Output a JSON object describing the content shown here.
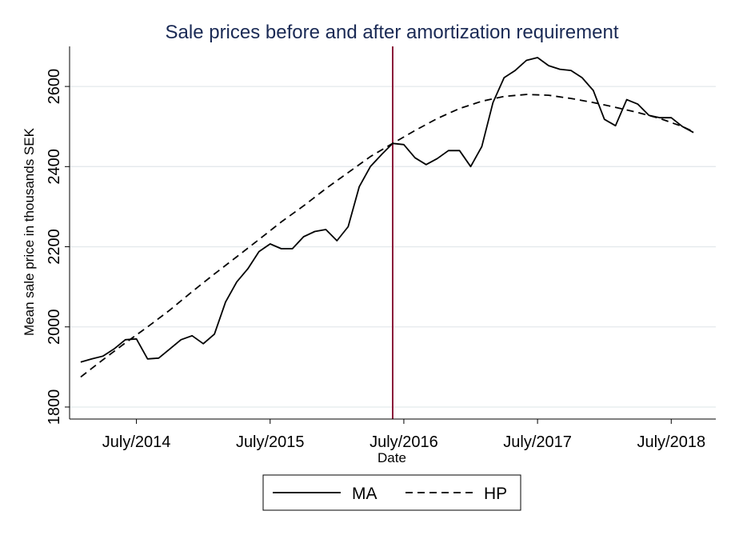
{
  "chart_data": {
    "type": "line",
    "title": "Sale prices before and after amortization requirement",
    "xlabel": "Date",
    "ylabel": "Mean sale price in  thousands SEK",
    "x_unit": "month",
    "xlim": [
      "2014-01",
      "2018-11"
    ],
    "ylim": [
      1770,
      2700
    ],
    "y_ticks": [
      1800,
      2000,
      2200,
      2400,
      2600
    ],
    "x_ticks": [
      {
        "date": "2014-07",
        "label": "July/2014"
      },
      {
        "date": "2015-07",
        "label": "July/2015"
      },
      {
        "date": "2016-07",
        "label": "July/2016"
      },
      {
        "date": "2017-07",
        "label": "July/2017"
      },
      {
        "date": "2018-07",
        "label": "July/2018"
      }
    ],
    "grid": true,
    "legend_position": "bottom",
    "vertical_line": {
      "date": "2016-06",
      "color": "#8b1a3a"
    },
    "series": [
      {
        "name": "MA",
        "style": "solid",
        "color": "#000000",
        "x": [
          "2014-02",
          "2014-03",
          "2014-04",
          "2014-05",
          "2014-06",
          "2014-07",
          "2014-08",
          "2014-09",
          "2014-10",
          "2014-11",
          "2014-12",
          "2015-01",
          "2015-02",
          "2015-03",
          "2015-04",
          "2015-05",
          "2015-06",
          "2015-07",
          "2015-08",
          "2015-09",
          "2015-10",
          "2015-11",
          "2015-12",
          "2016-01",
          "2016-02",
          "2016-03",
          "2016-04",
          "2016-05",
          "2016-06",
          "2016-07",
          "2016-08",
          "2016-09",
          "2016-10",
          "2016-11",
          "2016-12",
          "2017-01",
          "2017-02",
          "2017-03",
          "2017-04",
          "2017-05",
          "2017-06",
          "2017-07",
          "2017-08",
          "2017-09",
          "2017-10",
          "2017-11",
          "2017-12",
          "2018-01",
          "2018-02",
          "2018-03",
          "2018-04",
          "2018-05",
          "2018-06",
          "2018-07",
          "2018-08",
          "2018-09"
        ],
        "values": [
          1912,
          1920,
          1927,
          1945,
          1968,
          1970,
          1920,
          1922,
          1945,
          1968,
          1978,
          1958,
          1982,
          2062,
          2112,
          2145,
          2188,
          2207,
          2195,
          2195,
          2225,
          2238,
          2243,
          2215,
          2250,
          2350,
          2400,
          2430,
          2458,
          2455,
          2422,
          2405,
          2420,
          2440,
          2440,
          2400,
          2450,
          2560,
          2622,
          2640,
          2665,
          2672,
          2652,
          2643,
          2640,
          2622,
          2590,
          2518,
          2502,
          2567,
          2556,
          2528,
          2522,
          2522,
          2500,
          2485
        ]
      },
      {
        "name": "HP",
        "style": "dashed",
        "color": "#000000",
        "x": [
          "2014-02",
          "2014-04",
          "2014-06",
          "2014-08",
          "2014-10",
          "2014-12",
          "2015-02",
          "2015-04",
          "2015-06",
          "2015-08",
          "2015-10",
          "2015-12",
          "2016-02",
          "2016-04",
          "2016-06",
          "2016-08",
          "2016-10",
          "2016-12",
          "2017-02",
          "2017-04",
          "2017-06",
          "2017-08",
          "2017-10",
          "2017-12",
          "2018-02",
          "2018-04",
          "2018-06",
          "2018-08",
          "2018-09"
        ],
        "values": [
          1875,
          1918,
          1960,
          2000,
          2042,
          2088,
          2132,
          2175,
          2218,
          2262,
          2302,
          2345,
          2385,
          2425,
          2458,
          2490,
          2520,
          2545,
          2563,
          2575,
          2580,
          2578,
          2570,
          2560,
          2548,
          2535,
          2520,
          2500,
          2487
        ]
      }
    ]
  }
}
